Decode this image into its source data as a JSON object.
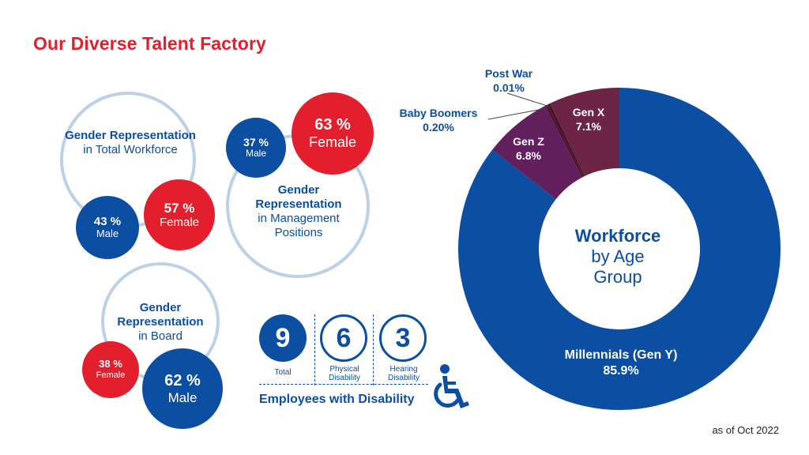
{
  "title": "Our Diverse Talent Factory",
  "colors": {
    "brand_red": "#e31e2d",
    "brand_blue": "#0b4ea2",
    "ring": "#bcd1e8",
    "gen_x": "#6e2545",
    "gen_z": "#611f5e",
    "baby_boomers": "#55112e",
    "post_war": "#3a0f1f"
  },
  "gender": {
    "workforce": {
      "heading": "Gender Representation",
      "subheading": "in Total Workforce",
      "male_pct": "43 %",
      "male_label": "Male",
      "female_pct": "57 %",
      "female_label": "Female"
    },
    "management": {
      "heading": "Gender Representation",
      "subheading": "in Management Positions",
      "male_pct": "37 %",
      "male_label": "Male",
      "female_pct": "63 %",
      "female_label": "Female"
    },
    "board": {
      "heading": "Gender Representation",
      "subheading": "in Board",
      "male_pct": "62 %",
      "male_label": "Male",
      "female_pct": "38 %",
      "female_label": "Female"
    }
  },
  "disability": {
    "title": "Employees with Disability",
    "items": [
      {
        "value": "9",
        "label": "Total"
      },
      {
        "value": "6",
        "label": "Physical Disability"
      },
      {
        "value": "3",
        "label": "Hearing Disability"
      }
    ],
    "icon": "wheelchair-icon"
  },
  "chart_data": {
    "type": "pie",
    "variant": "donut",
    "center_title": "Workforce",
    "center_subtitle": "by Age Group",
    "slices": [
      {
        "name": "Millennials (Gen Y)",
        "value": 85.9,
        "label": "85.9%",
        "color": "#0b4ea2"
      },
      {
        "name": "Gen Z",
        "value": 6.8,
        "label": "6.8%",
        "color": "#611f5e"
      },
      {
        "name": "Baby Boomers",
        "value": 0.2,
        "label": "0.20%",
        "color": "#55112e"
      },
      {
        "name": "Post War",
        "value": 0.01,
        "label": "0.01%",
        "color": "#3a0f1f"
      },
      {
        "name": "Gen X",
        "value": 7.1,
        "label": "7.1%",
        "color": "#6e2545"
      }
    ]
  },
  "footer": {
    "asof": "as of Oct 2022"
  }
}
